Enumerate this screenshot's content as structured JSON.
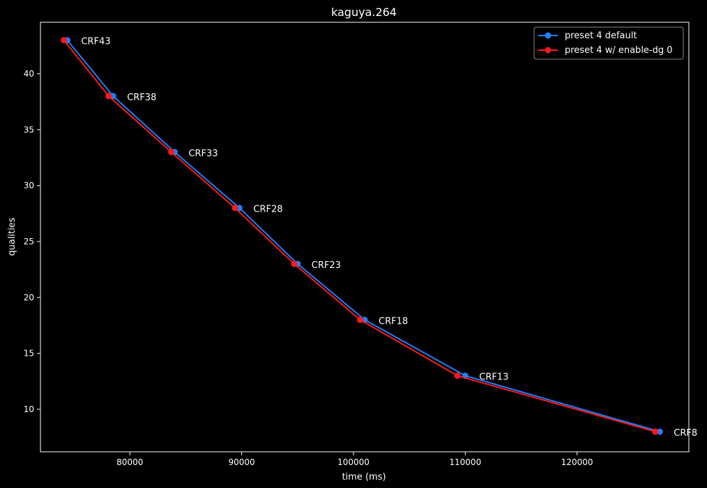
{
  "chart_data": {
    "type": "line",
    "title": "kaguya.264",
    "xlabel": "time (ms)",
    "ylabel": "qualities",
    "xlim": [
      72000,
      130000
    ],
    "ylim": [
      6.2,
      44.6
    ],
    "xticks": [
      80000,
      90000,
      100000,
      110000,
      120000
    ],
    "yticks": [
      10,
      15,
      20,
      25,
      30,
      35,
      40
    ],
    "grid": false,
    "legend_position": "top-right",
    "series": [
      {
        "name": "preset 4 default",
        "color": "#1f7fff",
        "points": [
          {
            "x": 74400,
            "y": 43
          },
          {
            "x": 78500,
            "y": 38
          },
          {
            "x": 84000,
            "y": 33
          },
          {
            "x": 89800,
            "y": 28
          },
          {
            "x": 95000,
            "y": 23
          },
          {
            "x": 101000,
            "y": 18
          },
          {
            "x": 110000,
            "y": 13
          },
          {
            "x": 127400,
            "y": 8
          }
        ]
      },
      {
        "name": "preset 4 w/ enable-dg 0",
        "color": "#ff1a1a",
        "points": [
          {
            "x": 74100,
            "y": 43
          },
          {
            "x": 78100,
            "y": 38
          },
          {
            "x": 83700,
            "y": 33
          },
          {
            "x": 89400,
            "y": 28
          },
          {
            "x": 94700,
            "y": 23
          },
          {
            "x": 100600,
            "y": 18
          },
          {
            "x": 109300,
            "y": 13
          },
          {
            "x": 127000,
            "y": 8
          }
        ]
      }
    ],
    "annotations": [
      {
        "text": "CRF43",
        "x": 74400,
        "y": 43
      },
      {
        "text": "CRF38",
        "x": 78500,
        "y": 38
      },
      {
        "text": "CRF33",
        "x": 84000,
        "y": 33
      },
      {
        "text": "CRF28",
        "x": 89800,
        "y": 28
      },
      {
        "text": "CRF23",
        "x": 95000,
        "y": 23
      },
      {
        "text": "CRF18",
        "x": 101000,
        "y": 18
      },
      {
        "text": "CRF13",
        "x": 110000,
        "y": 13
      },
      {
        "text": "CRF8",
        "x": 127400,
        "y": 8
      }
    ]
  }
}
